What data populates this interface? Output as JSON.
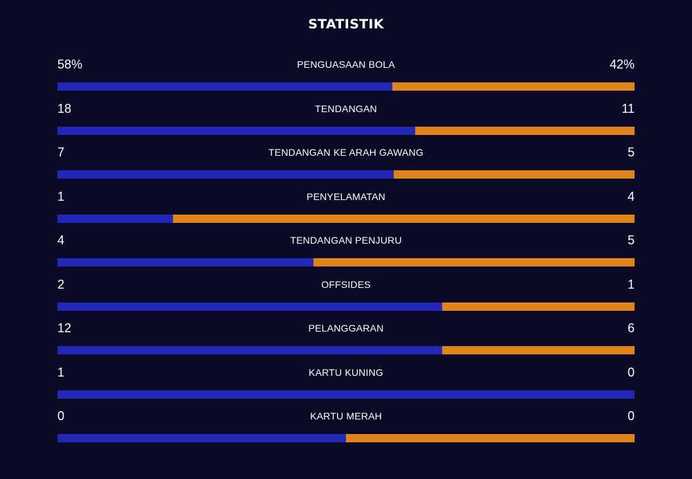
{
  "header": {
    "title": "STATISTIK"
  },
  "colors": {
    "background": "#0a0a26",
    "home_bar": "#2327b8",
    "away_bar": "#e0831a",
    "text": "#ffffff"
  },
  "stats": [
    {
      "label": "PENGUASAAN BOLA",
      "home": "58%",
      "away": "42%",
      "home_share": 0.58
    },
    {
      "label": "TENDANGAN",
      "home": "18",
      "away": "11",
      "home_share": 0.62
    },
    {
      "label": "TENDANGAN KE ARAH GAWANG",
      "home": "7",
      "away": "5",
      "home_share": 0.583
    },
    {
      "label": "PENYELAMATAN",
      "home": "1",
      "away": "4",
      "home_share": 0.2
    },
    {
      "label": "TENDANGAN PENJURU",
      "home": "4",
      "away": "5",
      "home_share": 0.444
    },
    {
      "label": "OFFSIDES",
      "home": "2",
      "away": "1",
      "home_share": 0.667
    },
    {
      "label": "PELANGGARAN",
      "home": "12",
      "away": "6",
      "home_share": 0.667
    },
    {
      "label": "KARTU KUNING",
      "home": "1",
      "away": "0",
      "home_share": 1.0
    },
    {
      "label": "KARTU MERAH",
      "home": "0",
      "away": "0",
      "home_share": 0.5
    }
  ]
}
